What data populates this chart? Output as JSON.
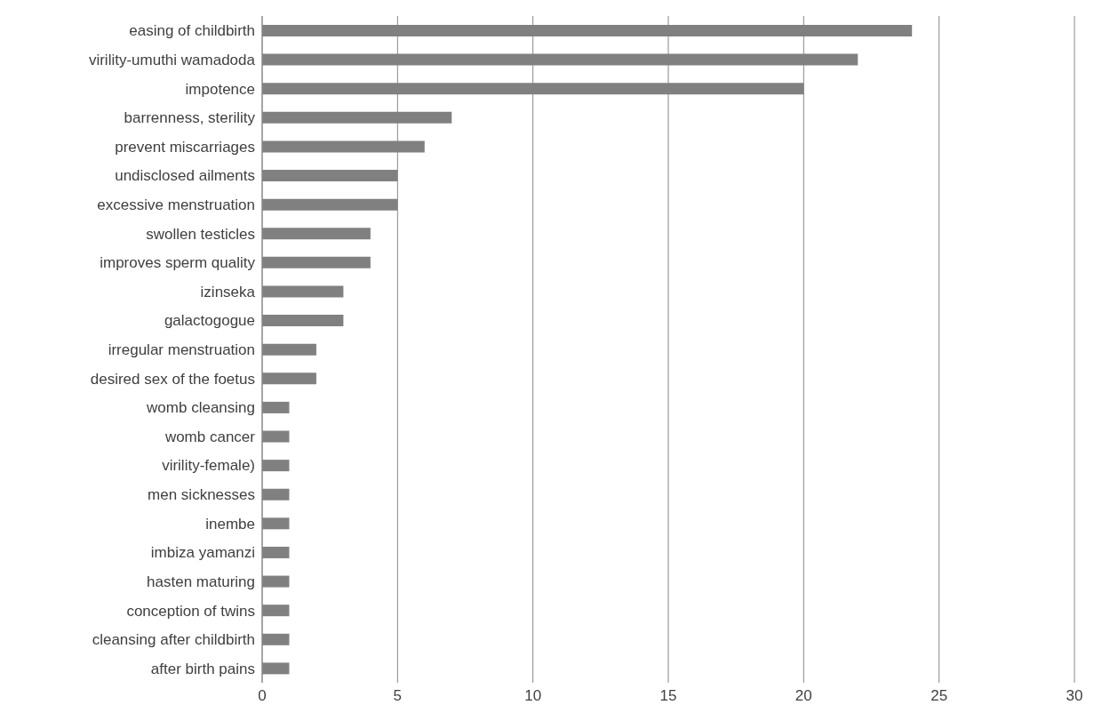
{
  "chart_data": {
    "type": "bar",
    "orientation": "horizontal",
    "categories": [
      "easing of childbirth",
      "virility-umuthi wamadoda",
      "impotence",
      "barrenness, sterility",
      "prevent miscarriages",
      "undisclosed ailments",
      "excessive menstruation",
      "swollen testicles",
      "improves sperm quality",
      "izinseka",
      "galactogogue",
      "irregular menstruation",
      "desired sex of the foetus",
      "womb cleansing",
      "womb cancer",
      "virility-female)",
      "men sicknesses",
      "inembe",
      "imbiza yamanzi",
      "hasten maturing",
      "conception of twins",
      "cleansing after childbirth",
      "after birth pains"
    ],
    "values": [
      24,
      22,
      20,
      7,
      6,
      5,
      5,
      4,
      4,
      3,
      3,
      2,
      2,
      1,
      1,
      1,
      1,
      1,
      1,
      1,
      1,
      1,
      1
    ],
    "color": "#808080",
    "xlim": [
      0,
      30
    ],
    "xticks": [
      0,
      5,
      10,
      15,
      20,
      25,
      30
    ],
    "grid": "x"
  }
}
